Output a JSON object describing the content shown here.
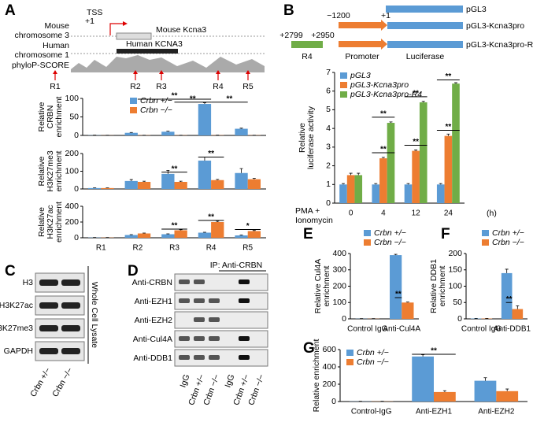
{
  "panels": [
    "A",
    "B",
    "C",
    "D",
    "E",
    "F",
    "G"
  ],
  "diagram_a": {
    "tss": "TSS",
    "tss_pos": "+1",
    "mouse": [
      "Mouse",
      "chromosome 3"
    ],
    "mouse_gene": "Mouse Kcna3",
    "human": [
      "Human",
      "chromosome 1"
    ],
    "human_gene": "Human KCNA3",
    "track": "phyloP-SCORE",
    "regions": [
      "R1",
      "R2",
      "R3",
      "R4",
      "R5"
    ]
  },
  "diagram_b": {
    "constructs": [
      "pGL3",
      "pGL3-Kcna3pro",
      "pGL3-Kcna3pro-R4"
    ],
    "positions": [
      "−1200",
      "+1",
      "+2799",
      "+2950"
    ],
    "parts": [
      "R4",
      "Promoter",
      "Luciferase"
    ]
  },
  "blot_c": {
    "rows": [
      "H3",
      "H3K27ac",
      "H3K27me3",
      "GAPDH"
    ],
    "side": "Whole Cell Lysate",
    "lanes": [
      "Crbn +/−",
      "Crbn −/−"
    ]
  },
  "blot_d": {
    "ip": "IP: Anti-CRBN",
    "rows": [
      "Anti-CRBN",
      "Anti-EZH1",
      "Anti-EZH2",
      "Anti-Cul4A",
      "Anti-DDB1"
    ],
    "lanes": [
      "IgG",
      "Crbn +/−",
      "Crbn −/−",
      "IgG",
      "Crbn +/−",
      "Crbn −/−"
    ]
  },
  "chart_data": [
    {
      "type": "bar",
      "ylabel": [
        "Relative",
        "CRBN",
        "enrichment"
      ],
      "ylim": [
        0,
        100
      ],
      "yticks": [
        0,
        50,
        100
      ],
      "legend": true,
      "annotations": [
        "**",
        "**",
        "**"
      ],
      "series": [
        {
          "name": "Crbn +/−",
          "color": "#5b9bd5",
          "values": [
            0.5,
            7,
            10,
            85,
            18
          ],
          "errors": [
            0.2,
            1,
            1.5,
            3,
            1.5
          ]
        },
        {
          "name": "Crbn −/−",
          "color": "#ed7d31",
          "values": [
            0.3,
            0.5,
            0.5,
            0.6,
            0.5
          ],
          "errors": [
            0.1,
            0.1,
            0.1,
            0.1,
            0.1
          ]
        }
      ]
    },
    {
      "type": "bar",
      "ylabel": [
        "Relative",
        "H3K27me3",
        "enrichment"
      ],
      "ylim": [
        0,
        200
      ],
      "yticks": [
        0,
        100,
        200
      ],
      "legend": false,
      "annotations": [
        "**",
        "**"
      ],
      "series": [
        {
          "name": "Crbn +/−",
          "color": "#5b9bd5",
          "values": [
            5,
            45,
            85,
            160,
            90
          ],
          "errors": [
            1,
            8,
            20,
            20,
            25
          ]
        },
        {
          "name": "Crbn −/−",
          "color": "#ed7d31",
          "values": [
            5,
            40,
            40,
            50,
            55
          ],
          "errors": [
            1,
            4,
            4,
            4,
            5
          ]
        }
      ]
    },
    {
      "type": "bar",
      "ylabel": [
        "Relative",
        "H3K27ac",
        "enrichment"
      ],
      "categories": [
        "R1",
        "R2",
        "R3",
        "R4",
        "R5"
      ],
      "ylim": [
        0,
        400
      ],
      "yticks": [
        0,
        200,
        400
      ],
      "legend": false,
      "annotations": [
        "**",
        "**",
        "*"
      ],
      "series": [
        {
          "name": "Crbn +/−",
          "color": "#5b9bd5",
          "values": [
            3,
            35,
            45,
            65,
            30
          ],
          "errors": [
            1,
            5,
            5,
            5,
            5
          ]
        },
        {
          "name": "Crbn −/−",
          "color": "#ed7d31",
          "values": [
            3,
            55,
            95,
            200,
            85
          ],
          "errors": [
            1,
            5,
            8,
            10,
            8
          ]
        }
      ]
    },
    {
      "type": "bar",
      "ylabel": [
        "Relative",
        "luciferase activity"
      ],
      "categories": [
        "0",
        "4",
        "12",
        "24"
      ],
      "xlabel": [
        "PMA +",
        "Ionomycin"
      ],
      "xunit": "(h)",
      "ylim": [
        0,
        7
      ],
      "yticks": [
        0,
        1,
        2,
        3,
        4,
        5,
        6,
        7
      ],
      "legend": true,
      "annotations": [
        "**",
        "**",
        "**",
        "**",
        "**",
        "**"
      ],
      "series": [
        {
          "name": "pGL3",
          "color": "#5b9bd5",
          "values": [
            1,
            1,
            1,
            1
          ],
          "errors": [
            0.05,
            0.05,
            0.05,
            0.05
          ]
        },
        {
          "name": "pGL3-Kcna3pro",
          "color": "#ed7d31",
          "values": [
            1.5,
            2.4,
            2.8,
            3.6
          ],
          "errors": [
            0.1,
            0.05,
            0.05,
            0.1
          ]
        },
        {
          "name": "pGL3-Kcna3pro-R4",
          "color": "#70ad47",
          "values": [
            1.5,
            4.3,
            5.4,
            6.4
          ],
          "errors": [
            0.1,
            0.05,
            0.05,
            0.05
          ]
        }
      ]
    },
    {
      "type": "bar",
      "ylabel": [
        "Relative Cul4A",
        "enrichment"
      ],
      "categories": [
        "Control IgG",
        "Anti-Cul4A"
      ],
      "ylim": [
        0,
        400
      ],
      "yticks": [
        0,
        100,
        200,
        300,
        400
      ],
      "legend": true,
      "annotations": [
        "**"
      ],
      "series": [
        {
          "name": "Crbn +/−",
          "color": "#5b9bd5",
          "values": [
            1,
            390
          ],
          "errors": [
            0.5,
            5
          ]
        },
        {
          "name": "Crbn −/−",
          "color": "#ed7d31",
          "values": [
            1,
            100
          ],
          "errors": [
            0.5,
            3
          ]
        }
      ]
    },
    {
      "type": "bar",
      "ylabel": [
        "Relative DDB1",
        "enrichment"
      ],
      "categories": [
        "Control IgG",
        "Anti-DDB1"
      ],
      "ylim": [
        0,
        200
      ],
      "yticks": [
        0,
        50,
        100,
        150,
        200
      ],
      "legend": true,
      "annotations": [
        "**"
      ],
      "series": [
        {
          "name": "Crbn +/−",
          "color": "#5b9bd5",
          "values": [
            1,
            140
          ],
          "errors": [
            0.5,
            12
          ]
        },
        {
          "name": "Crbn −/−",
          "color": "#ed7d31",
          "values": [
            1,
            30
          ],
          "errors": [
            0.5,
            10
          ]
        }
      ]
    },
    {
      "type": "bar",
      "ylabel": [
        "Relative enrichment"
      ],
      "categories": [
        "Control-IgG",
        "Anti-EZH1",
        "Anti-EZH2"
      ],
      "ylim": [
        0,
        600
      ],
      "yticks": [
        0,
        200,
        400,
        600
      ],
      "legend": true,
      "annotations": [
        "**"
      ],
      "series": [
        {
          "name": "Crbn +/−",
          "color": "#5b9bd5",
          "values": [
            2,
            520,
            240
          ],
          "errors": [
            1,
            20,
            35
          ]
        },
        {
          "name": "Crbn −/−",
          "color": "#ed7d31",
          "values": [
            2,
            110,
            120
          ],
          "errors": [
            1,
            15,
            25
          ]
        }
      ]
    }
  ]
}
